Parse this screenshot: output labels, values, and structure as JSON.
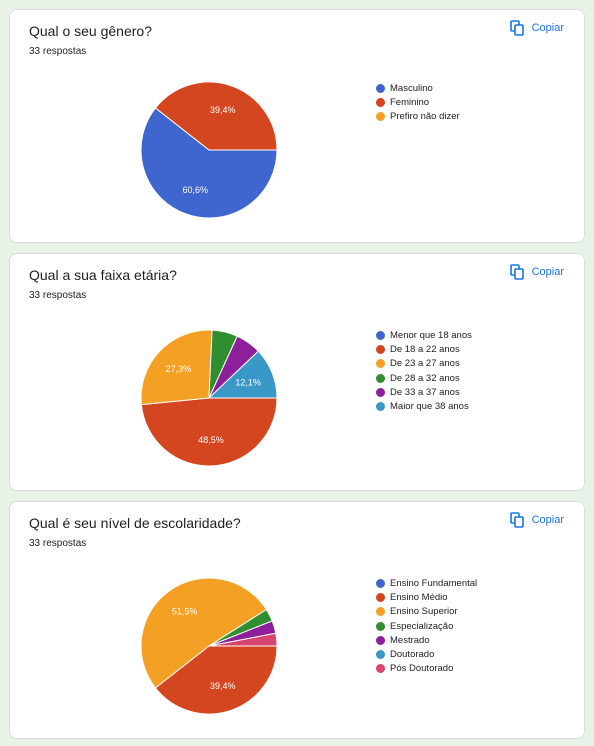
{
  "copy_label": "Copiar",
  "chart_data": [
    {
      "type": "pie",
      "title": "Qual o seu gênero?",
      "subtitle": "33 respostas",
      "categories": [
        "Masculino",
        "Feminino",
        "Prefiro não dizer"
      ],
      "values": [
        60.6,
        39.4,
        0
      ],
      "labels": [
        "60,6%",
        "39,4%",
        ""
      ],
      "colors": [
        "#3f66cf",
        "#d3461f",
        "#f4a024"
      ],
      "legend_position": "right"
    },
    {
      "type": "pie",
      "title": "Qual a sua faixa etária?",
      "subtitle": "33 respostas",
      "categories": [
        "Menor que 18 anos",
        "De 18 a 22 anos",
        "De 23 a 27 anos",
        "De 28 a 32 anos",
        "De 33 a 37 anos",
        "Maior que 38 anos"
      ],
      "values": [
        0,
        48.5,
        27.3,
        6.1,
        6.1,
        12.1
      ],
      "labels": [
        "",
        "48,5%",
        "27,3%",
        "",
        "",
        "12,1%"
      ],
      "colors": [
        "#3f66cf",
        "#d3461f",
        "#f4a024",
        "#2f8e2f",
        "#8e1f9a",
        "#3a98c8"
      ],
      "legend_position": "right"
    },
    {
      "type": "pie",
      "title": "Qual é seu nível de escolaridade?",
      "subtitle": "33 respostas",
      "categories": [
        "Ensino Fundamental",
        "Ensino Médio",
        "Ensino Superior",
        "Especialização",
        "Mestrado",
        "Doutorado",
        "Pós Doutorado"
      ],
      "values": [
        0,
        39.4,
        51.5,
        3.0,
        3.0,
        0,
        3.0
      ],
      "labels": [
        "",
        "39,4%",
        "51,5%",
        "",
        "",
        "",
        ""
      ],
      "colors": [
        "#3f66cf",
        "#d3461f",
        "#f4a024",
        "#2f8e2f",
        "#8e1f9a",
        "#3a98c8",
        "#d7466e"
      ],
      "legend_position": "right"
    }
  ]
}
